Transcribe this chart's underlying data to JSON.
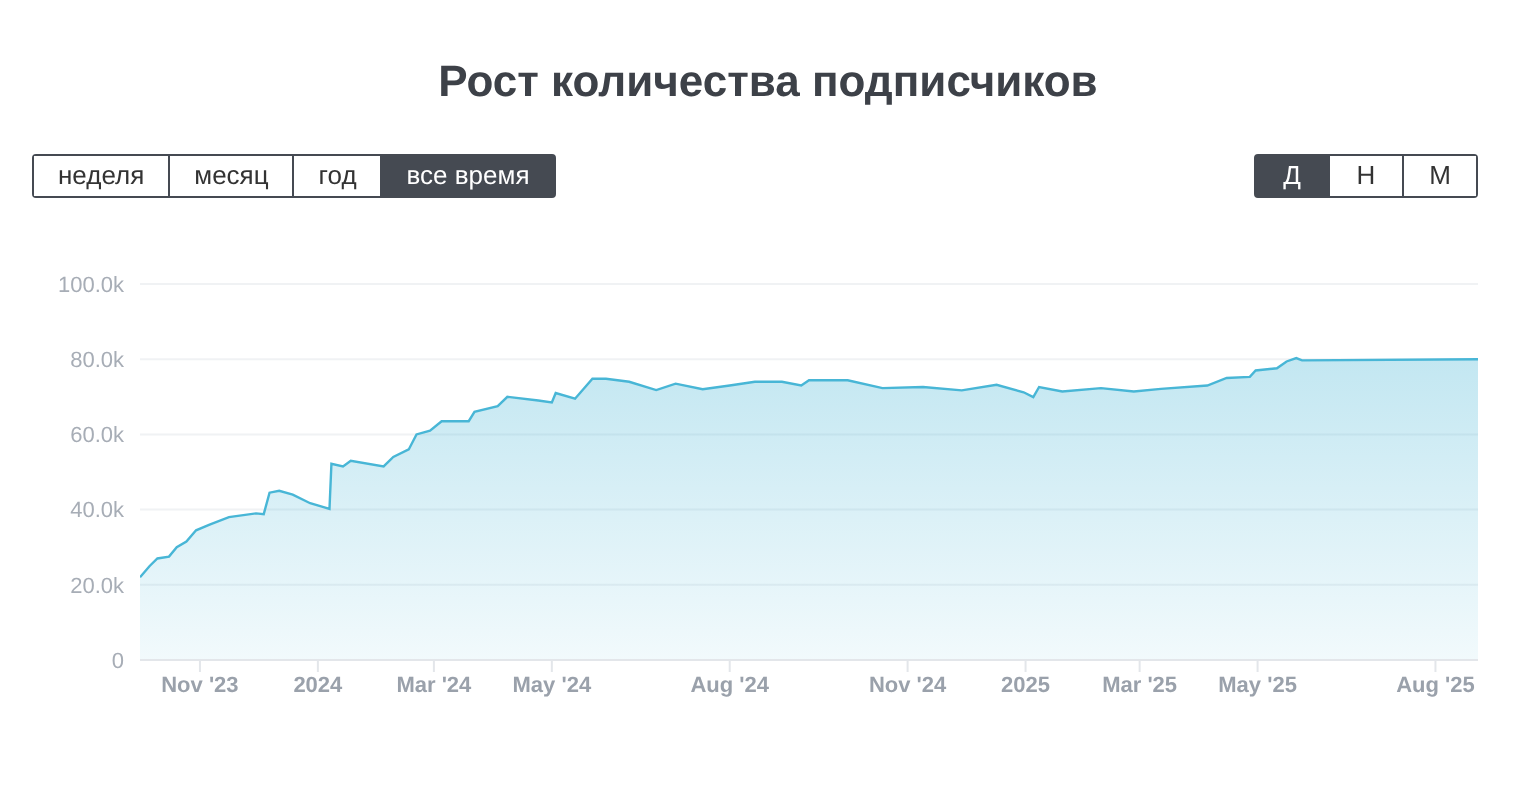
{
  "chart_data": {
    "type": "area",
    "title": "Рост количества подписчиков",
    "annotations": [
      "неделя",
      "месяц",
      "год",
      "все время",
      "Д",
      "Н",
      "М"
    ],
    "x": [
      "2023-10-01",
      "2023-10-06",
      "2023-10-10",
      "2023-10-16",
      "2023-10-20",
      "2023-10-25",
      "2023-10-30",
      "2023-11-06",
      "2023-11-16",
      "2023-11-30",
      "2023-12-04",
      "2023-12-07",
      "2023-12-12",
      "2023-12-19",
      "2023-12-28",
      "2024-01-07",
      "2024-01-08",
      "2024-01-14",
      "2024-01-18",
      "2024-02-04",
      "2024-02-09",
      "2024-02-17",
      "2024-02-21",
      "2024-02-28",
      "2024-03-05",
      "2024-03-19",
      "2024-03-22",
      "2024-04-03",
      "2024-04-08",
      "2024-04-24",
      "2024-05-01",
      "2024-05-03",
      "2024-05-13",
      "2024-05-22",
      "2024-05-29",
      "2024-06-10",
      "2024-06-24",
      "2024-07-04",
      "2024-07-18",
      "2024-08-01",
      "2024-08-14",
      "2024-08-28",
      "2024-09-07",
      "2024-09-11",
      "2024-10-01",
      "2024-10-19",
      "2024-11-09",
      "2024-11-29",
      "2024-12-17",
      "2024-12-31",
      "2025-01-05",
      "2025-01-08",
      "2025-01-20",
      "2025-02-09",
      "2025-02-26",
      "2025-03-12",
      "2025-04-05",
      "2025-04-15",
      "2025-04-27",
      "2025-04-30",
      "2025-05-11",
      "2025-05-16",
      "2025-05-21",
      "2025-05-24",
      "2025-08-23"
    ],
    "series": [
      {
        "color": "#48b6d6",
        "values": [
          22000,
          25000,
          27000,
          27500,
          30000,
          31500,
          34500,
          36000,
          38000,
          39000,
          38800,
          44500,
          45000,
          44000,
          41700,
          40200,
          52200,
          51500,
          53000,
          51500,
          54000,
          56000,
          60000,
          61000,
          63500,
          63500,
          66000,
          67500,
          70000,
          69000,
          68500,
          71000,
          69500,
          74800,
          74800,
          74000,
          71800,
          73500,
          72000,
          73000,
          74000,
          74000,
          73000,
          74400,
          74400,
          72300,
          72600,
          71700,
          73200,
          71200,
          69900,
          72600,
          71400,
          72300,
          71400,
          72100,
          73000,
          75000,
          75300,
          77000,
          77600,
          79400,
          80300,
          79700,
          80000
        ]
      }
    ],
    "xlim": [
      "2023-10-01",
      "2025-08-23"
    ],
    "xticks": [
      {
        "value": "2023-11-01",
        "label": "Nov '23"
      },
      {
        "value": "2024-01-01",
        "label": "2024"
      },
      {
        "value": "2024-03-01",
        "label": "Mar '24"
      },
      {
        "value": "2024-05-01",
        "label": "May '24"
      },
      {
        "value": "2024-08-01",
        "label": "Aug '24"
      },
      {
        "value": "2024-11-01",
        "label": "Nov '24"
      },
      {
        "value": "2025-01-01",
        "label": "2025"
      },
      {
        "value": "2025-03-01",
        "label": "Mar '25"
      },
      {
        "value": "2025-05-01",
        "label": "May '25"
      },
      {
        "value": "2025-08-01",
        "label": "Aug '25"
      }
    ],
    "ylim": [
      0,
      100000
    ],
    "yticks": [
      0,
      {
        "value": 20000,
        "label": "20.0k"
      },
      {
        "value": 40000,
        "label": "40.0k"
      },
      {
        "value": 60000,
        "label": "60.0k"
      },
      {
        "value": 80000,
        "label": "80.0k"
      },
      {
        "value": 100000,
        "label": "100.0k"
      }
    ],
    "grid": "y"
  }
}
